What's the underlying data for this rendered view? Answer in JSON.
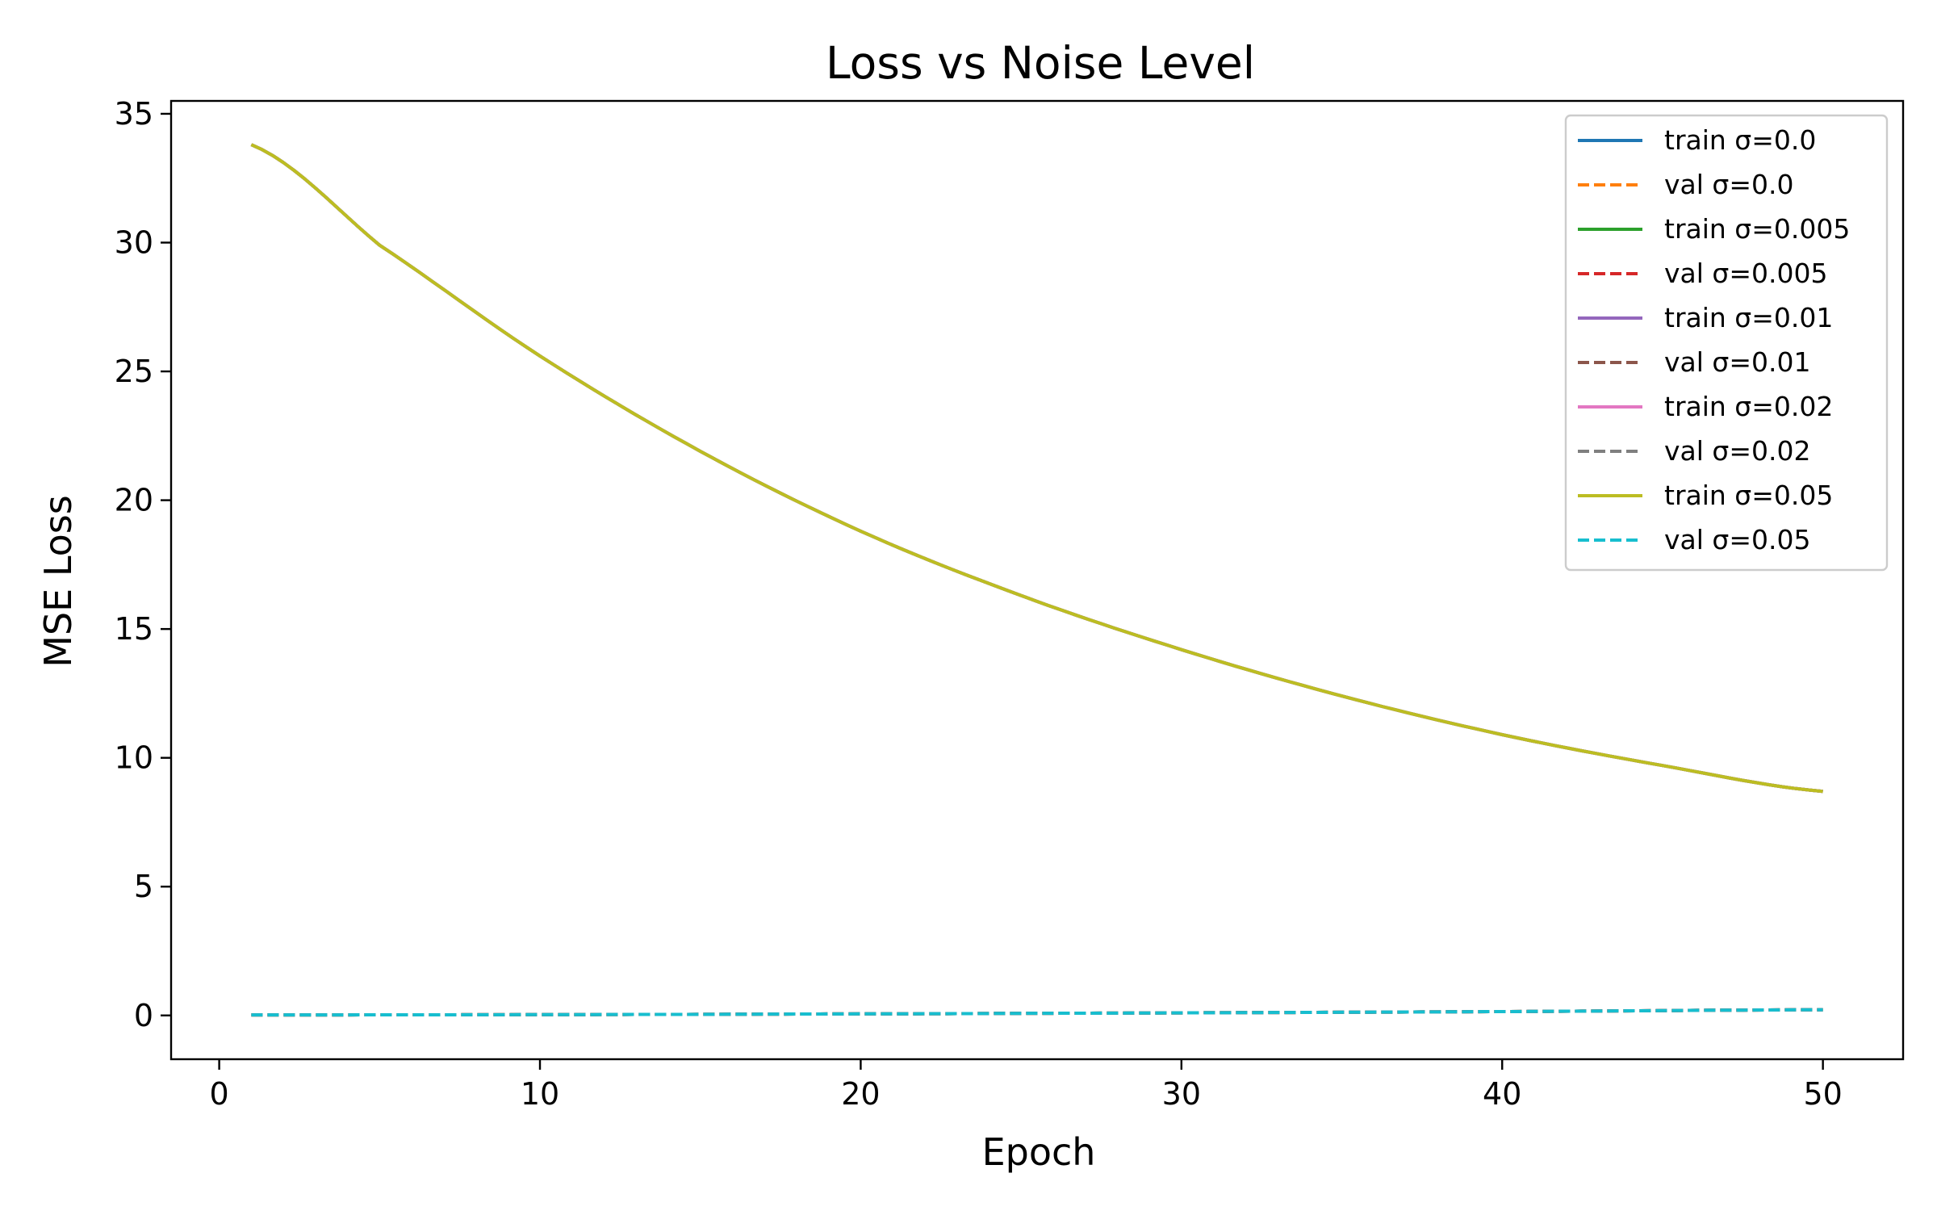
{
  "chart_data": {
    "type": "line",
    "title": "Loss vs Noise Level",
    "xlabel": "Epoch",
    "ylabel": "MSE Loss",
    "xlim": [
      -1.5,
      52.5
    ],
    "ylim": [
      -1.7,
      35.5
    ],
    "xticks": [
      0,
      10,
      20,
      30,
      40,
      50
    ],
    "yticks": [
      0,
      5,
      10,
      15,
      20,
      25,
      30,
      35
    ],
    "grid": false,
    "legend_position": "top-right",
    "series": [
      {
        "name": "train σ=0.0",
        "color": "#1f77b4",
        "style": "solid",
        "kind": "train"
      },
      {
        "name": "val σ=0.0",
        "color": "#ff7f0e",
        "style": "dashed",
        "kind": "val"
      },
      {
        "name": "train σ=0.005",
        "color": "#2ca02c",
        "style": "solid",
        "kind": "train"
      },
      {
        "name": "val σ=0.005",
        "color": "#d62728",
        "style": "dashed",
        "kind": "val"
      },
      {
        "name": "train σ=0.01",
        "color": "#9467bd",
        "style": "solid",
        "kind": "train"
      },
      {
        "name": "val σ=0.01",
        "color": "#8c564b",
        "style": "dashed",
        "kind": "val"
      },
      {
        "name": "train σ=0.02",
        "color": "#e377c2",
        "style": "solid",
        "kind": "train"
      },
      {
        "name": "val σ=0.02",
        "color": "#7f7f7f",
        "style": "dashed",
        "kind": "val"
      },
      {
        "name": "train σ=0.05",
        "color": "#bcbd22",
        "style": "solid",
        "kind": "train"
      },
      {
        "name": "val σ=0.05",
        "color": "#17becf",
        "style": "dashed",
        "kind": "val"
      }
    ],
    "train_curve": {
      "x": [
        1,
        5,
        10,
        15,
        20,
        25,
        30,
        35,
        40,
        45,
        50
      ],
      "y": [
        33.8,
        29.9,
        25.6,
        21.9,
        18.8,
        16.3,
        14.2,
        12.4,
        10.9,
        9.7,
        8.7
      ]
    },
    "val_curve": {
      "x": [
        1,
        10,
        20,
        30,
        40,
        50
      ],
      "y": [
        0.02,
        0.03,
        0.06,
        0.1,
        0.15,
        0.22
      ]
    }
  }
}
